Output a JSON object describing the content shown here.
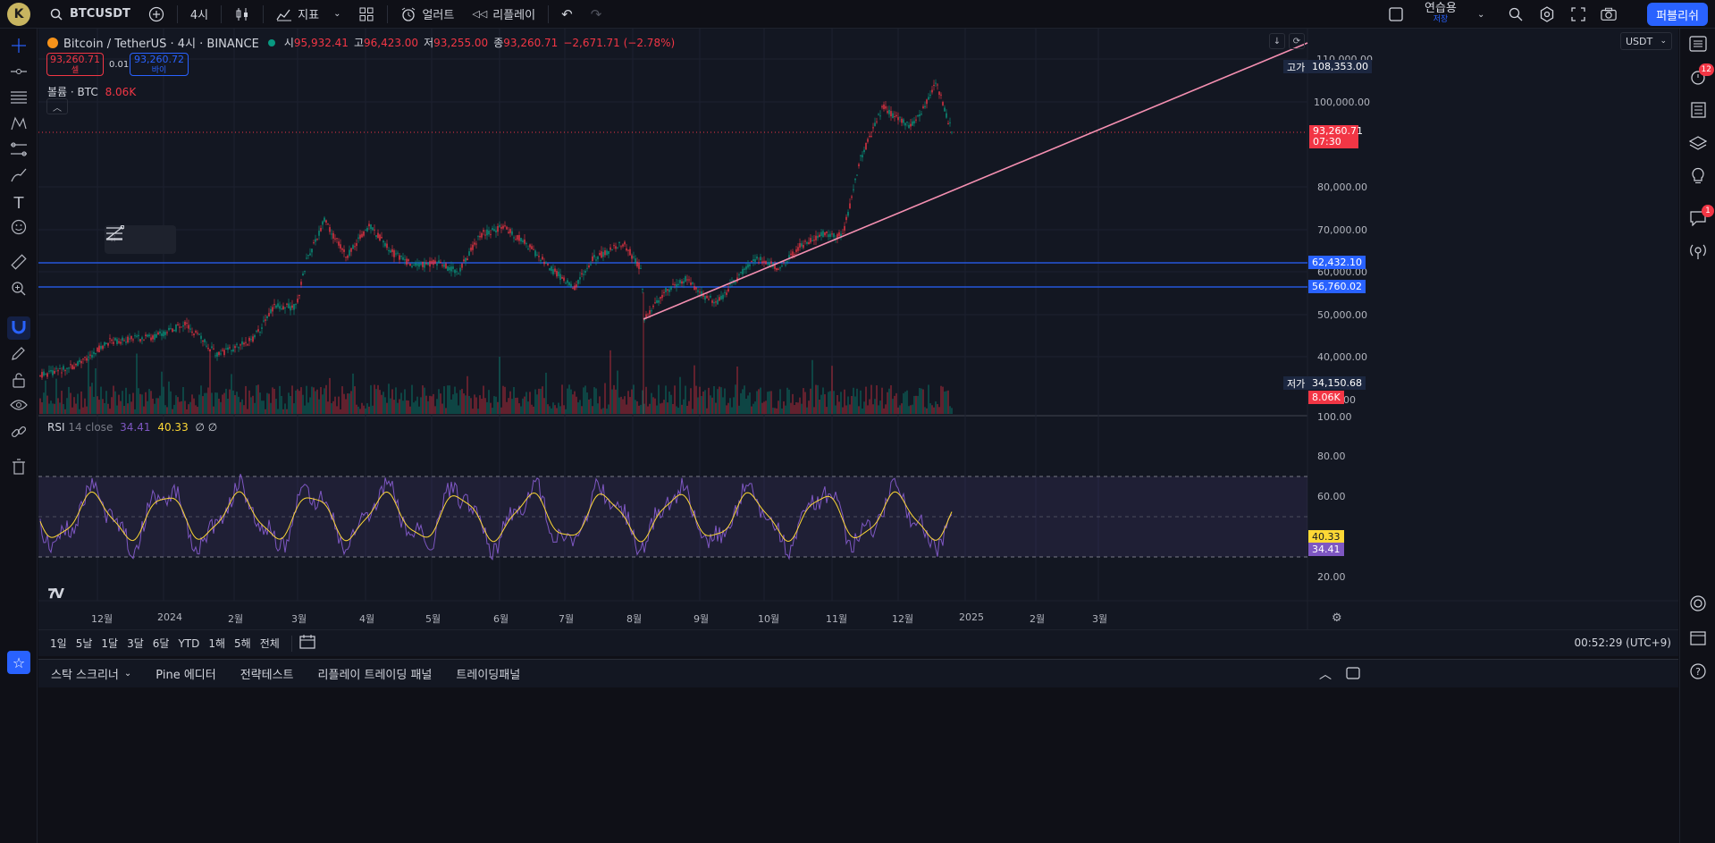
{
  "topbar": {
    "avatar_letter": "K",
    "symbol": "BTCUSDT",
    "interval": "4시",
    "indicators_label": "지표",
    "alert_label": "얼러트",
    "replay_label": "리플레이",
    "layout_name": "연습용",
    "layout_status": "저장",
    "publish_label": "퍼블리쉬"
  },
  "legend": {
    "title": "Bitcoin / TetherUS · 4시 · BINANCE",
    "open_label": "시",
    "open": "95,932.41",
    "high_label": "고",
    "high": "96,423.00",
    "low_label": "저",
    "low": "93,255.00",
    "close_label": "종",
    "close": "93,260.71",
    "change": "−2,671.71 (−2.78%)",
    "sell_price": "93,260.71",
    "sell_label": "셀",
    "spread": "0.01",
    "buy_price": "93,260.72",
    "buy_label": "바이",
    "volume_label": "볼륨 · BTC",
    "volume_value": "8.06K",
    "rsi_label": "RSI",
    "rsi_params": "14 close",
    "rsi_value": "34.41",
    "rsi_ma_value": "40.33",
    "rsi_extra": "∅ ∅"
  },
  "price_axis": {
    "currency": "USDT",
    "ticks": [
      "110,000.00",
      "100,000.00",
      "80,000.00",
      "70,000.00",
      "60,000.00",
      "50,000.00",
      "40,000.00"
    ],
    "high_tag_label": "고가",
    "high_tag_value": "108,353.00",
    "last_price": "93,260.71",
    "countdown": "07:30",
    "level1": "62,432.10",
    "level2": "56,760.02",
    "low_tag_label": "저가",
    "low_tag_value": "34,150.68",
    "volume_tag": "8.06K",
    "partial_tick": "00",
    "rsi_ticks": [
      "100.00",
      "80.00",
      "60.00",
      "20.00"
    ],
    "rsi_ma_tag": "40.33",
    "rsi_tag": "34.41"
  },
  "time_axis": {
    "labels": [
      "12월",
      "2024",
      "2월",
      "3월",
      "4월",
      "5월",
      "6월",
      "7월",
      "8월",
      "9월",
      "10월",
      "11월",
      "12월",
      "2025",
      "2월",
      "3월"
    ]
  },
  "rangebar": {
    "ranges": [
      "1일",
      "5날",
      "1달",
      "3달",
      "6달",
      "YTD",
      "1해",
      "5해",
      "전체"
    ],
    "clock": "00:52:29 (UTC+9)"
  },
  "bottompanel": {
    "tabs": [
      "스탁 스크리너",
      "Pine 에디터",
      "전략테스트",
      "리플레이 트레이딩 패널",
      "트레이딩패널"
    ]
  },
  "right_badges": {
    "alerts": "12",
    "chat": "1"
  },
  "colors": {
    "accent": "#2962ff",
    "down": "#f23645",
    "up": "#089981",
    "trendline": "#f48fb1",
    "rsi": "#7e57c2",
    "rsi_ma": "#fdd835"
  }
}
